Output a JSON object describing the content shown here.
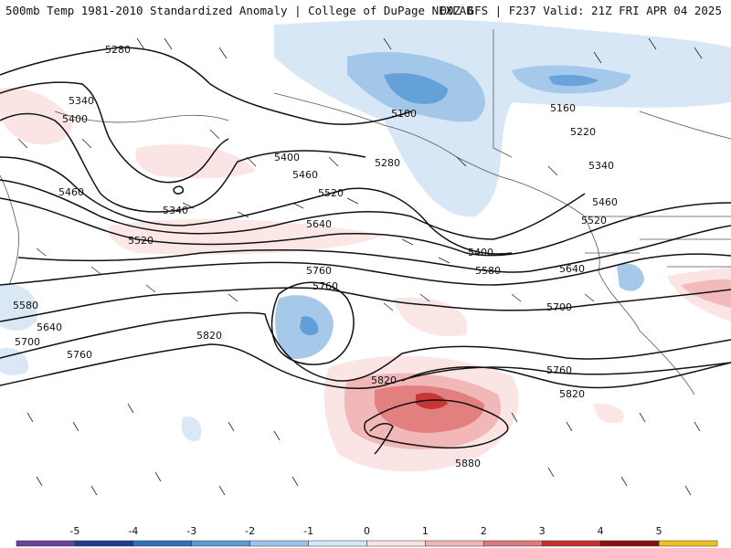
{
  "header": {
    "title_left": "500mb Temp 1981-2010 Standardized Anomaly | College of DuPage NEXLAB",
    "title_right": "00Z GFS | F237 Valid: 21Z FRI APR 04 2025"
  },
  "contour_labels": [
    "5280",
    "5340",
    "5400",
    "5460",
    "5100",
    "5160",
    "5220",
    "5280",
    "5340",
    "5400",
    "5460",
    "5520",
    "5580",
    "5640",
    "5700",
    "5760",
    "5820",
    "5880",
    "5340",
    "5520",
    "5640",
    "5760",
    "5820",
    "5580",
    "5640",
    "5700",
    "5760",
    "5400",
    "5460",
    "5520",
    "5760",
    "5820"
  ],
  "colorbar": {
    "ticks": [
      "-5",
      "-4",
      "-3",
      "-2",
      "-1",
      "0",
      "1",
      "2",
      "3",
      "4",
      "5"
    ],
    "colors": [
      "#6a3fa0",
      "#1f3d8c",
      "#2f6fc0",
      "#5a9ad6",
      "#9cc3e8",
      "#d6e6f5",
      "#fbe3e3",
      "#f1b5b5",
      "#e07a7a",
      "#c73030",
      "#8a1010",
      "#f0c020"
    ]
  }
}
